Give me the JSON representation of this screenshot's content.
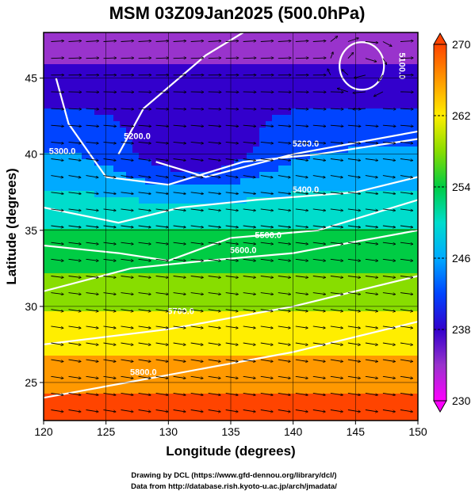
{
  "chart_data": {
    "type": "heatmap",
    "title": "MSM 03Z09Jan2025 (500.0hPa)",
    "xlabel": "Longitude (degrees)",
    "ylabel": "Latitude  (degrees)",
    "xlim": [
      120,
      150
    ],
    "ylim": [
      22.5,
      48
    ],
    "x_ticks": [
      "120",
      "125",
      "130",
      "135",
      "140",
      "145",
      "150"
    ],
    "y_ticks": [
      "25",
      "30",
      "35",
      "40",
      "45"
    ],
    "colorbar": {
      "range": [
        230,
        270
      ],
      "ticks": [
        "230",
        "238",
        "246",
        "254",
        "262",
        "270"
      ],
      "colors": [
        "#ff00ff",
        "#9933cc",
        "#3300cc",
        "#0044ff",
        "#00aaff",
        "#00ddcc",
        "#00cc44",
        "#88dd00",
        "#ffee00",
        "#ff9900",
        "#ff4400"
      ]
    },
    "field_description": "500hPa temperature (K) shaded, geopotential height contours (white), wind vectors",
    "contour_labels": [
      "5100.0",
      "5200.0",
      "5200.0",
      "5300.0",
      "5400.0",
      "5500.0",
      "5600.0",
      "5700.0",
      "5800.0"
    ],
    "credits": [
      "Drawing by DCL (https://www.gfd-dennou.org/library/dcl/)",
      "Data from http://database.rish.kyoto-u.ac.jp/arch/jmadata/"
    ]
  }
}
